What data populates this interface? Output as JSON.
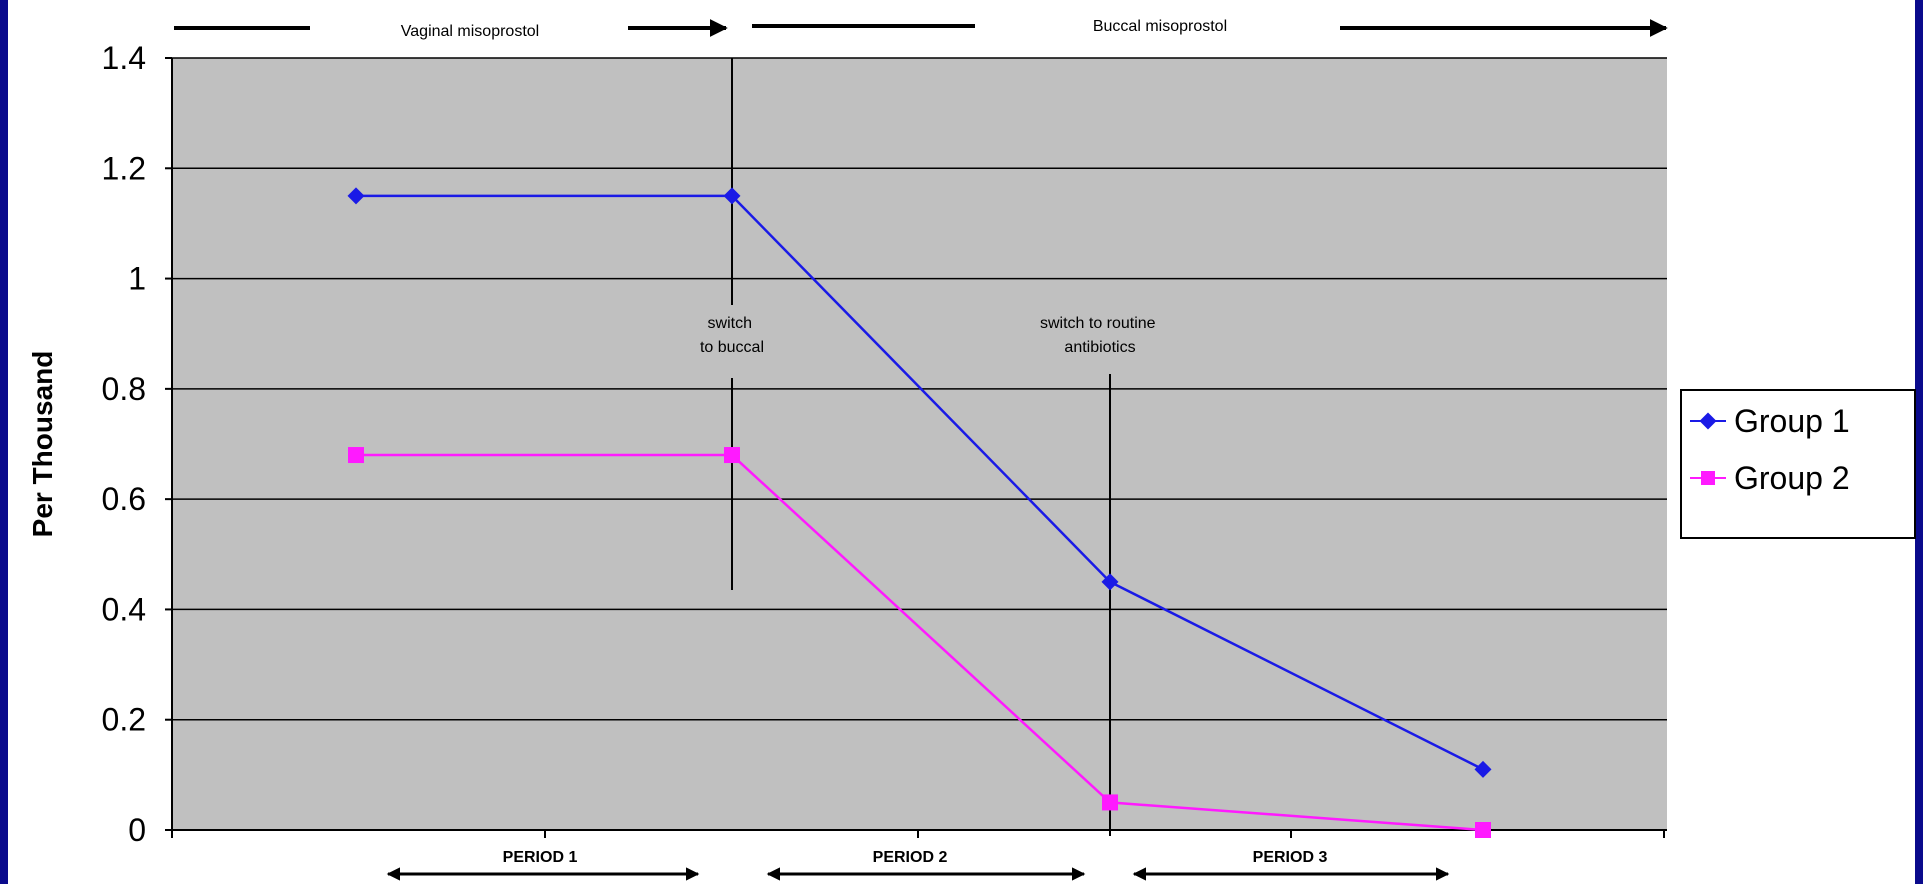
{
  "colors": {
    "frame": "#0a0a8c",
    "plot_background": "#c0c0c0",
    "group1": "#1a1ae6",
    "group2": "#ff1aff"
  },
  "chart_data": {
    "type": "line",
    "ylabel": "Per  Thousand",
    "ylim": [
      0,
      1.4
    ],
    "yticks": [
      "0",
      "0.2",
      "0.4",
      "0.6",
      "0.8",
      "1",
      "1.2",
      "1.4"
    ],
    "ytick_values": [
      0,
      0.2,
      0.4,
      0.6,
      0.8,
      1,
      1.2,
      1.4
    ],
    "grid": true,
    "legend": "right",
    "series": [
      {
        "name": "Group 1",
        "marker": "diamond",
        "x": [
          1,
          2,
          3,
          4
        ],
        "values": [
          1.15,
          1.15,
          0.45,
          0.11
        ]
      },
      {
        "name": "Group 2",
        "marker": "square",
        "x": [
          1,
          2,
          3,
          4
        ],
        "values": [
          0.68,
          0.68,
          0.05,
          0.0
        ]
      }
    ],
    "top_labels": {
      "vaginal": "Vaginal misoprostol",
      "buccal": "Buccal misoprostol"
    },
    "annotations": {
      "switch_buccal": [
        "switch",
        "to buccal"
      ],
      "switch_antibiotics": [
        "switch to routine",
        "antibiotics"
      ]
    },
    "periods": [
      "PERIOD 1",
      "PERIOD 2",
      "PERIOD 3"
    ]
  }
}
